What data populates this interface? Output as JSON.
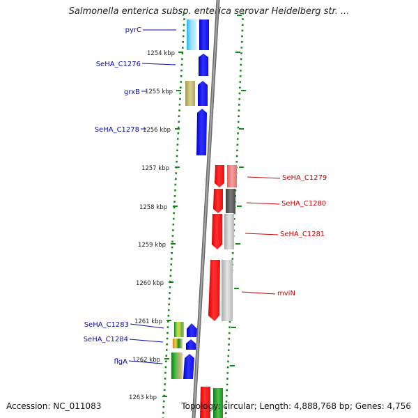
{
  "title": "Salmonella enterica subsp. enterica serovar Heidelberg str. ...",
  "footer": {
    "accession": "Accession: NC_011083",
    "topology": "Topology: circular; Length: 4,888,768 bp; Genes: 4,756"
  },
  "colors": {
    "forward_label": "#0a0aa8",
    "reverse_label": "#cc0000",
    "backbone": "#888888",
    "tick": "#118811"
  },
  "kbp_ticks": [
    {
      "label": "1254 kbp"
    },
    {
      "label": "1255 kbp"
    },
    {
      "label": "1256 kbp"
    },
    {
      "label": "1257 kbp"
    },
    {
      "label": "1258 kbp"
    },
    {
      "label": "1259 kbp"
    },
    {
      "label": "1260 kbp"
    },
    {
      "label": "1261 kbp"
    },
    {
      "label": "1262 kbp"
    },
    {
      "label": "1263 kbp"
    }
  ],
  "genes_forward": [
    {
      "name": "pyrC"
    },
    {
      "name": "SeHA_C1276"
    },
    {
      "name": "grxB"
    },
    {
      "name": "SeHA_C1278"
    },
    {
      "name": "SeHA_C1283"
    },
    {
      "name": "SeHA_C1284"
    },
    {
      "name": "flgA"
    }
  ],
  "genes_reverse": [
    {
      "name": "SeHA_C1279"
    },
    {
      "name": "SeHA_C1280"
    },
    {
      "name": "SeHA_C1281"
    },
    {
      "name": "mviN"
    }
  ]
}
